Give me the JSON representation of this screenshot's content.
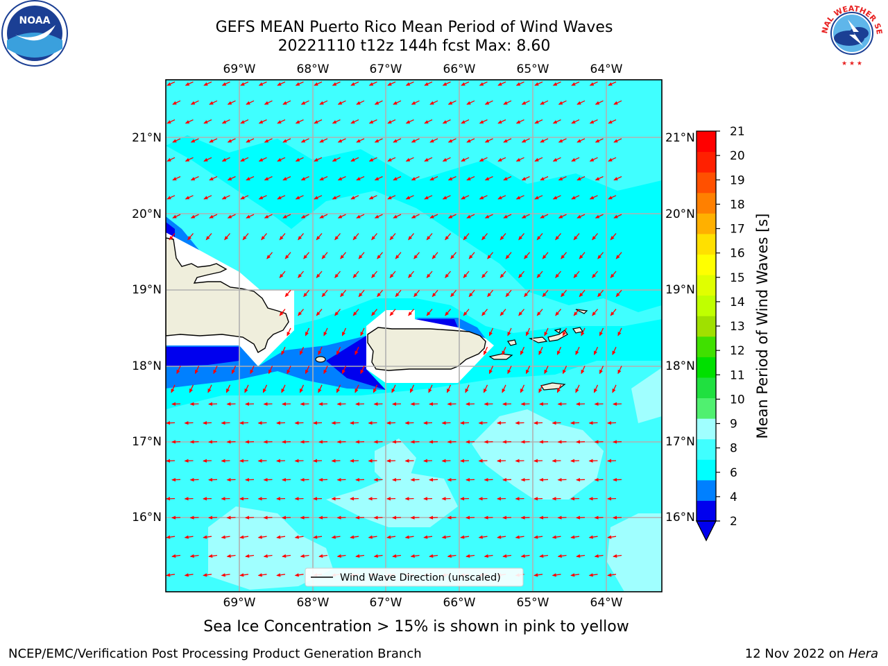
{
  "header": {
    "title_line1": "GEFS MEAN Puerto Rico Mean Period of Wind Waves",
    "title_line2": "20221110 t12z 144h fcst   Max: 8.60"
  },
  "map": {
    "lon_labels": [
      "69°W",
      "68°W",
      "67°W",
      "66°W",
      "65°W",
      "64°W"
    ],
    "lat_labels": [
      "21°N",
      "20°N",
      "19°N",
      "18°N",
      "17°N",
      "16°N"
    ],
    "legend_label": "Wind Wave Direction (unscaled)",
    "arrow_color": "#ff0000",
    "land_color": "#efeedc",
    "extent": {
      "lon_min": -70.0,
      "lon_max": -63.2,
      "lat_min": 15.0,
      "lat_max": 21.75
    }
  },
  "colorbar": {
    "label": "Mean Period of Wind Waves [s]",
    "ticks": [
      "21",
      "20",
      "19",
      "18",
      "17",
      "16",
      "15",
      "14",
      "13",
      "12",
      "11",
      "10",
      "9",
      "8",
      "6",
      "4",
      "2"
    ],
    "colors": [
      "#0000ee",
      "#0080ff",
      "#00ffff",
      "#40ffff",
      "#a0ffff",
      "#50f070",
      "#20e040",
      "#00e000",
      "#40e000",
      "#a0e000",
      "#c0ff00",
      "#e0ff00",
      "#ffff00",
      "#ffe000",
      "#ffb000",
      "#ff8000",
      "#ff5000",
      "#ff2000",
      "#ff0000"
    ]
  },
  "footer": {
    "note": "Sea Ice Concentration > 15% is shown in pink to yellow",
    "credit": "NCEP/EMC/Verification Post Processing Product Generation Branch",
    "date": "12 Nov 2022 on",
    "machine": "Hera"
  },
  "logos": {
    "noaa_text": "NOAA",
    "nws_text": "NATIONAL WEATHER SERVICE"
  }
}
